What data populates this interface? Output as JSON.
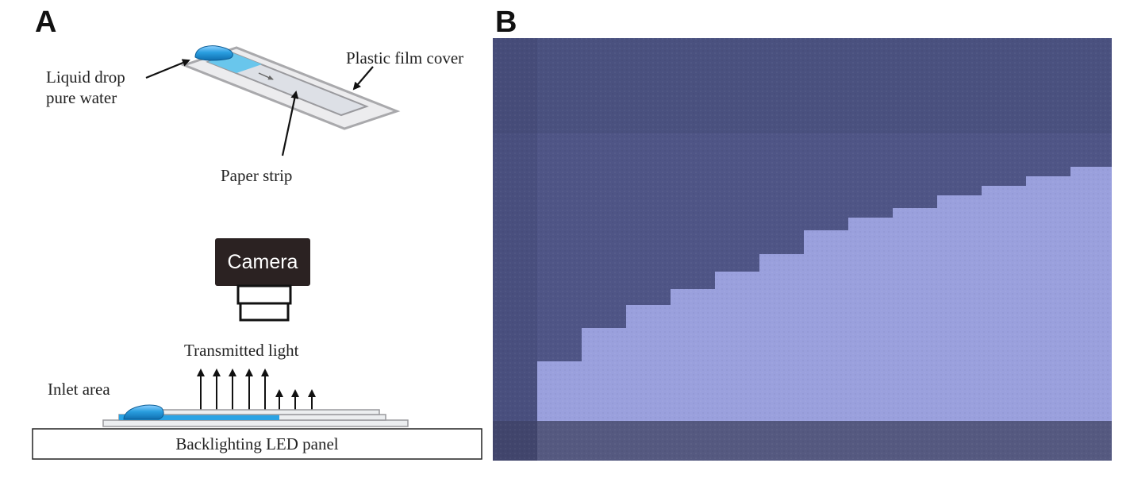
{
  "panel_a": {
    "letter": "A",
    "labels": {
      "liquid_drop_line1": "Liquid drop",
      "liquid_drop_line2": "pure water",
      "plastic_film_cover": "Plastic film cover",
      "paper_strip": "Paper strip",
      "camera": "Camera",
      "transmitted_light": "Transmitted light",
      "inlet_area": "Inlet area",
      "backlighting_led_panel": "Backlighting LED panel"
    }
  },
  "panel_b": {
    "letter": "B",
    "wet_region_steps": 13
  },
  "colors": {
    "water_blue": "#2a9fe0",
    "dry_paper": "#4f5586",
    "wet_paper": "#9aa0dd",
    "bottom_band": "#3e4260"
  }
}
